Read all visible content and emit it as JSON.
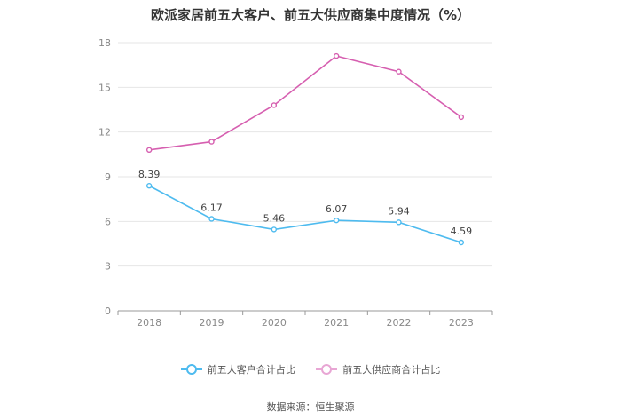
{
  "chart_data": {
    "type": "line",
    "title": "欧派家居前五大客户、前五大供应商集中度情况（%）",
    "categories": [
      "2018",
      "2019",
      "2020",
      "2021",
      "2022",
      "2023"
    ],
    "yticks": [
      "0",
      "3",
      "6",
      "9",
      "12",
      "15",
      "18"
    ],
    "ylim": [
      0,
      18
    ],
    "grid": true,
    "legend_position": "bottom",
    "series": [
      {
        "name": "前五大客户合计占比",
        "color": "#4ebbef",
        "values": [
          8.39,
          6.17,
          5.46,
          6.07,
          5.94,
          4.59
        ],
        "labels": [
          "8.39",
          "6.17",
          "5.46",
          "6.07",
          "5.94",
          "4.59"
        ]
      },
      {
        "name": "前五大供应商合计占比",
        "color": "#d65fb0",
        "values": [
          10.8,
          11.35,
          13.8,
          17.1,
          16.05,
          13.0
        ],
        "labels": []
      }
    ]
  },
  "source": "数据来源：恒生聚源"
}
